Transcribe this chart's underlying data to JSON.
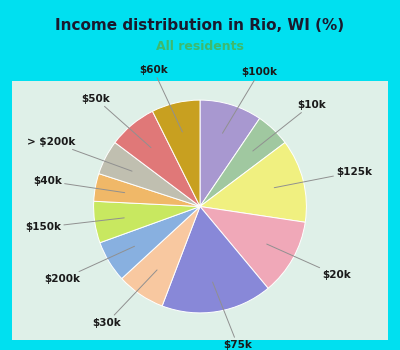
{
  "title": "Income distribution in Rio, WI (%)",
  "subtitle": "All residents",
  "title_color": "#1a1a2e",
  "subtitle_color": "#3dba6e",
  "background_outer": "#00e0f0",
  "background_inner": "#dff0e8",
  "labels": [
    "$100k",
    "$10k",
    "$125k",
    "$20k",
    "$75k",
    "$30k",
    "$200k",
    "$150k",
    "$40k",
    "> $200k",
    "$50k",
    "$60k"
  ],
  "values": [
    9,
    5,
    12,
    11,
    16,
    7,
    6,
    6,
    4,
    5,
    7,
    7
  ],
  "colors": [
    "#a898d0",
    "#a0c8a0",
    "#f0f080",
    "#f0a8b8",
    "#8888d8",
    "#f8c8a0",
    "#88b0e0",
    "#c8e860",
    "#f0b868",
    "#c0bfb0",
    "#e07878",
    "#c8a020"
  ],
  "startangle": 90,
  "label_fontsize": 7.5,
  "title_fontsize": 11,
  "subtitle_fontsize": 9
}
